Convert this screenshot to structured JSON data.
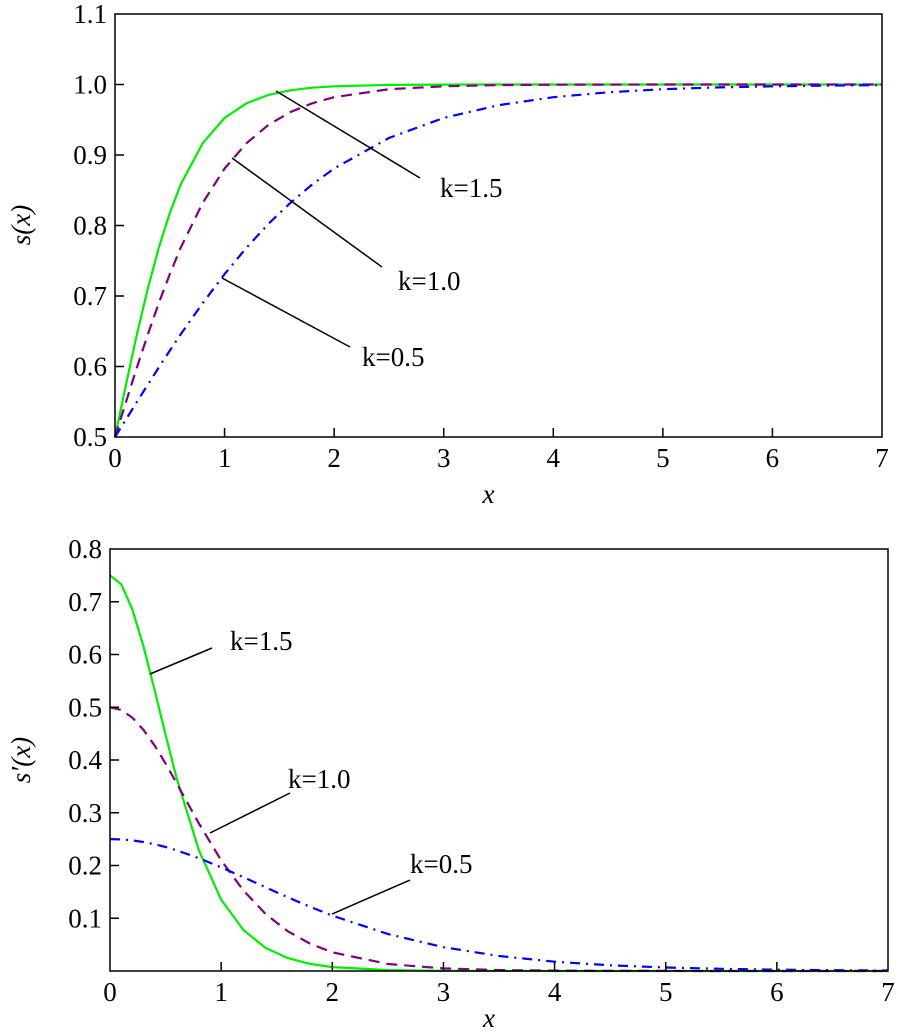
{
  "chart_data": [
    {
      "type": "line",
      "xlabel": "x",
      "ylabel": "s(x)",
      "xlim": [
        0,
        7
      ],
      "ylim": [
        0.5,
        1.1
      ],
      "xticks": [
        "0",
        "1",
        "2",
        "3",
        "4",
        "5",
        "6",
        "7"
      ],
      "yticks": [
        "0.5",
        "0.6",
        "0.7",
        "0.8",
        "0.9",
        "1.0",
        "1.1"
      ],
      "grid": false,
      "x": [
        0,
        0.1,
        0.2,
        0.3,
        0.4,
        0.5,
        0.6,
        0.8,
        1.0,
        1.2,
        1.4,
        1.6,
        1.8,
        2.0,
        2.5,
        3,
        3.5,
        4,
        4.5,
        5,
        5.5,
        6,
        6.5,
        7
      ],
      "series": [
        {
          "name": "k=1.5",
          "color": "#00ee00",
          "style": "solid",
          "values": [
            0.5,
            0.5744,
            0.6457,
            0.7109,
            0.7685,
            0.8176,
            0.8581,
            0.9168,
            0.9526,
            0.9734,
            0.9852,
            0.9918,
            0.9955,
            0.9975,
            0.9994,
            0.9999,
            1.0,
            1.0,
            1.0,
            1.0,
            1.0,
            1.0,
            1.0,
            1.0
          ]
        },
        {
          "name": "k=1.0",
          "color": "#800080",
          "style": "dashed",
          "values": [
            0.5,
            0.5498,
            0.5987,
            0.6457,
            0.69,
            0.7311,
            0.7685,
            0.832,
            0.8808,
            0.9168,
            0.9427,
            0.9608,
            0.9734,
            0.982,
            0.9933,
            0.9975,
            0.9991,
            0.9997,
            0.9999,
            1.0,
            1.0,
            1.0,
            1.0,
            1.0
          ]
        },
        {
          "name": "k=0.5",
          "color": "#0000ff",
          "style": "dashdot",
          "values": [
            0.5,
            0.525,
            0.5498,
            0.5744,
            0.5987,
            0.6225,
            0.6457,
            0.69,
            0.7311,
            0.7685,
            0.8022,
            0.832,
            0.8581,
            0.8808,
            0.9241,
            0.9526,
            0.9707,
            0.982,
            0.989,
            0.9933,
            0.9959,
            0.9975,
            0.9985,
            0.9991
          ]
        }
      ],
      "annotations": [
        "k=1.5",
        "k=1.0",
        "k=0.5"
      ]
    },
    {
      "type": "line",
      "xlabel": "x",
      "ylabel": "s′(x)",
      "xlim": [
        0,
        7
      ],
      "ylim": [
        0,
        0.8
      ],
      "xticks": [
        "0",
        "1",
        "2",
        "3",
        "4",
        "5",
        "6",
        "7"
      ],
      "yticks": [
        "0.1",
        "0.2",
        "0.3",
        "0.4",
        "0.5",
        "0.6",
        "0.7",
        "0.8"
      ],
      "grid": false,
      "x": [
        0,
        0.1,
        0.2,
        0.3,
        0.4,
        0.5,
        0.6,
        0.8,
        1.0,
        1.2,
        1.4,
        1.6,
        1.8,
        2.0,
        2.5,
        3,
        3.5,
        4,
        4.5,
        5,
        5.5,
        6,
        6.5,
        7
      ],
      "series": [
        {
          "name": "k=1.5",
          "color": "#00ee00",
          "style": "solid",
          "values": [
            0.75,
            0.7334,
            0.6863,
            0.6166,
            0.5337,
            0.4474,
            0.3653,
            0.2289,
            0.1355,
            0.0777,
            0.0437,
            0.0244,
            0.0134,
            0.0074,
            0.0017,
            0.0004,
            0.0001,
            0,
            0,
            0,
            0,
            0,
            0,
            0
          ]
        },
        {
          "name": "k=1.0",
          "color": "#800080",
          "style": "dashed",
          "values": [
            0.5,
            0.495,
            0.4805,
            0.4575,
            0.4278,
            0.3932,
            0.3558,
            0.2796,
            0.21,
            0.1526,
            0.108,
            0.0753,
            0.0518,
            0.0354,
            0.0133,
            0.0049,
            0.0018,
            0.0007,
            0.0002,
            0.0001,
            0,
            0,
            0,
            0
          ]
        },
        {
          "name": "k=0.5",
          "color": "#0000ff",
          "style": "dashdot",
          "values": [
            0.25,
            0.2494,
            0.2475,
            0.2445,
            0.2403,
            0.235,
            0.2288,
            0.2139,
            0.1966,
            0.1779,
            0.1587,
            0.1398,
            0.1218,
            0.105,
            0.0701,
            0.0452,
            0.0284,
            0.0177,
            0.0109,
            0.0066,
            0.0041,
            0.0025,
            0.0015,
            0.0009
          ]
        }
      ],
      "annotations": [
        "k=1.5",
        "k=1.0",
        "k=0.5"
      ]
    }
  ]
}
